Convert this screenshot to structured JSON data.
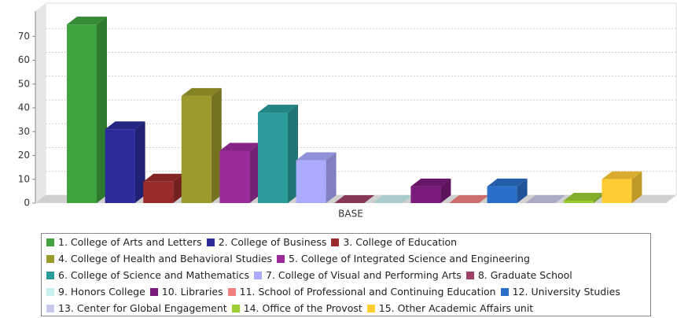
{
  "chart_data": {
    "type": "bar3d",
    "categories": [
      "BASE"
    ],
    "series": [
      {
        "name": "1. College of Arts and Letters",
        "color": "#3fa33f",
        "values": [
          75
        ]
      },
      {
        "name": "2. College of Business",
        "color": "#2b2b9b",
        "values": [
          31
        ]
      },
      {
        "name": "3. College of Education",
        "color": "#9b2b2b",
        "values": [
          9
        ]
      },
      {
        "name": "4. College of Health and Behavioral Studies",
        "color": "#9b9b2b",
        "values": [
          45
        ]
      },
      {
        "name": "5. College of Integrated Science and Engineering",
        "color": "#9b2b9b",
        "values": [
          22
        ]
      },
      {
        "name": "6. College of Science and Mathematics",
        "color": "#2b9b9b",
        "values": [
          38
        ]
      },
      {
        "name": "7. College of Visual and Performing Arts",
        "color": "#aaaaff",
        "values": [
          18
        ]
      },
      {
        "name": "8. Graduate School",
        "color": "#a14068",
        "values": [
          0
        ]
      },
      {
        "name": "9. Honors College",
        "color": "#c8f0f0",
        "values": [
          0
        ]
      },
      {
        "name": "10. Libraries",
        "color": "#7a1a7a",
        "values": [
          7
        ]
      },
      {
        "name": "11. School of Professional and Continuing Education",
        "color": "#f08080",
        "values": [
          0
        ]
      },
      {
        "name": "12. University Studies",
        "color": "#2a6fc9",
        "values": [
          7
        ]
      },
      {
        "name": "13. Center for Global Engagement",
        "color": "#c8c8e8",
        "values": [
          0
        ]
      },
      {
        "name": "14. Office of the Provost",
        "color": "#9acd32",
        "values": [
          1
        ]
      },
      {
        "name": "15. Other Academic Affairs unit",
        "color": "#ffcc33",
        "values": [
          10
        ]
      }
    ],
    "ylim": [
      0,
      80
    ],
    "yticks": [
      0,
      10,
      20,
      30,
      40,
      50,
      60,
      70
    ],
    "grid": true,
    "legend": "bottom"
  }
}
